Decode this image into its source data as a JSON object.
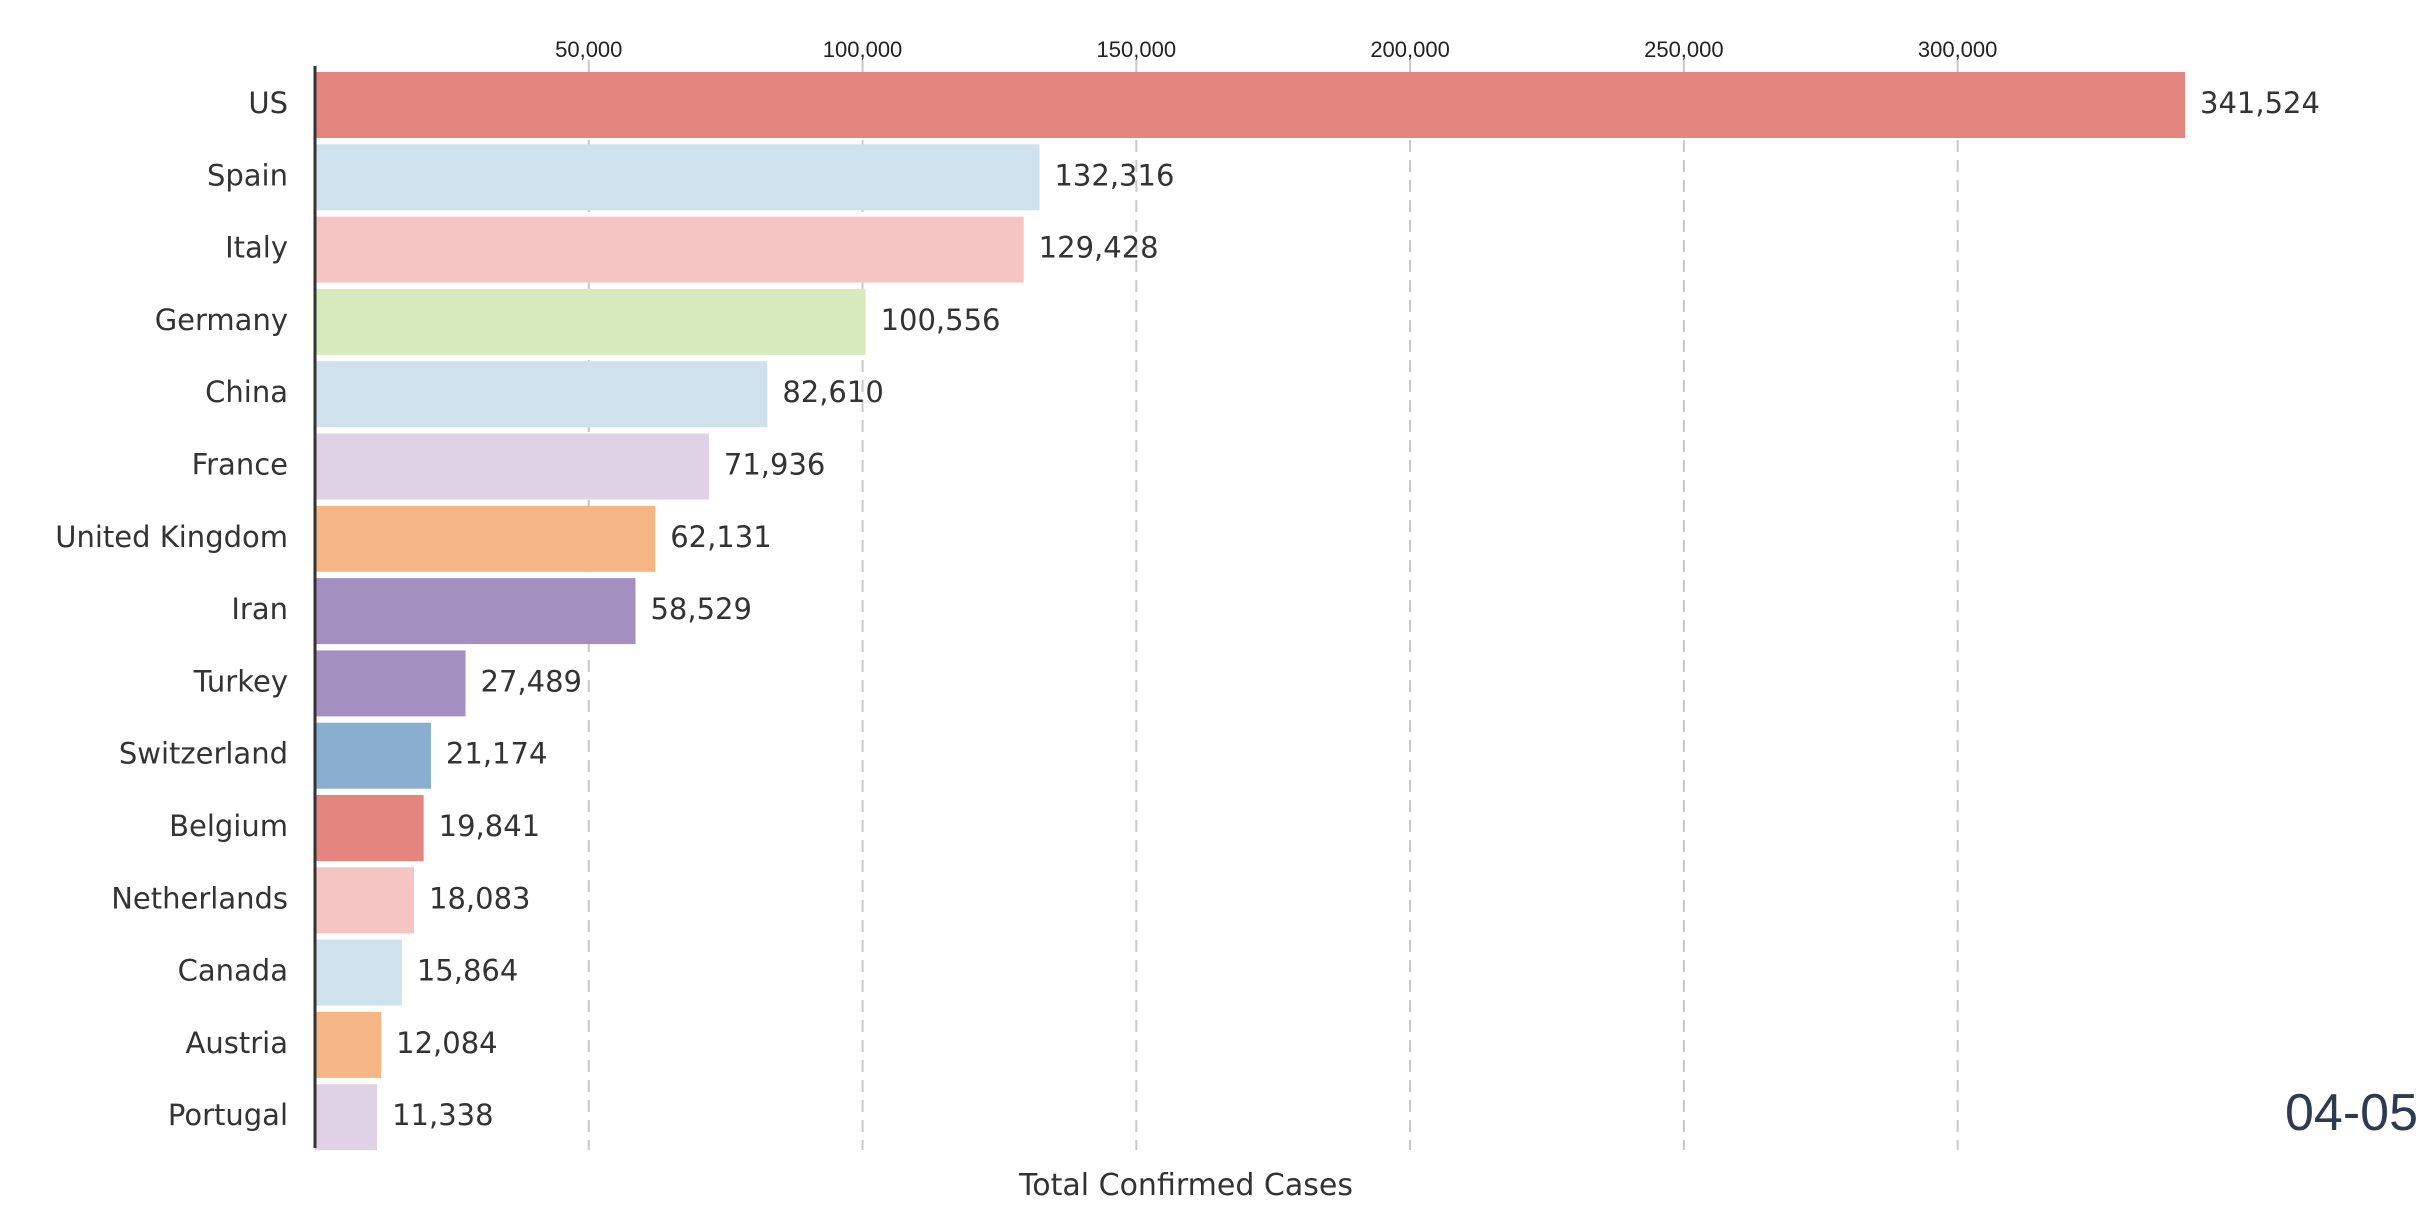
{
  "chart_data": {
    "type": "bar",
    "orientation": "horizontal",
    "xlabel": "Total Confirmed Cases",
    "date": "04-05",
    "xlim": [
      0,
      341524
    ],
    "x_ticks": [
      50000,
      100000,
      150000,
      200000,
      250000,
      300000
    ],
    "x_tick_labels": [
      "50,000",
      "100,000",
      "150,000",
      "200,000",
      "250,000",
      "300,000"
    ],
    "grid": "x dashed",
    "categories": [
      "US",
      "Spain",
      "Italy",
      "Germany",
      "China",
      "France",
      "United Kingdom",
      "Iran",
      "Turkey",
      "Switzerland",
      "Belgium",
      "Netherlands",
      "Canada",
      "Austria",
      "Portugal"
    ],
    "values": [
      341524,
      132316,
      129428,
      100556,
      82610,
      71936,
      62131,
      58529,
      27489,
      21174,
      19841,
      18083,
      15864,
      12084,
      11338
    ],
    "value_labels": [
      "341,524",
      "132,316",
      "129,428",
      "100,556",
      "82,610",
      "71,936",
      "62,131",
      "58,529",
      "27,489",
      "21,174",
      "19,841",
      "18,083",
      "15,864",
      "12,084",
      "11,338"
    ],
    "colors": [
      "#e4867f",
      "#cfe1ec",
      "#f5c5c4",
      "#d6eabc",
      "#cfe1ec",
      "#dfd2e7",
      "#f5b584",
      "#a48fc1",
      "#a48fc1",
      "#8aaed0",
      "#e4867f",
      "#f5c5c4",
      "#cfe1ec",
      "#f5b584",
      "#dfd2e7"
    ],
    "grid_color": "#c8c8c8",
    "axis_color": "#333333"
  }
}
